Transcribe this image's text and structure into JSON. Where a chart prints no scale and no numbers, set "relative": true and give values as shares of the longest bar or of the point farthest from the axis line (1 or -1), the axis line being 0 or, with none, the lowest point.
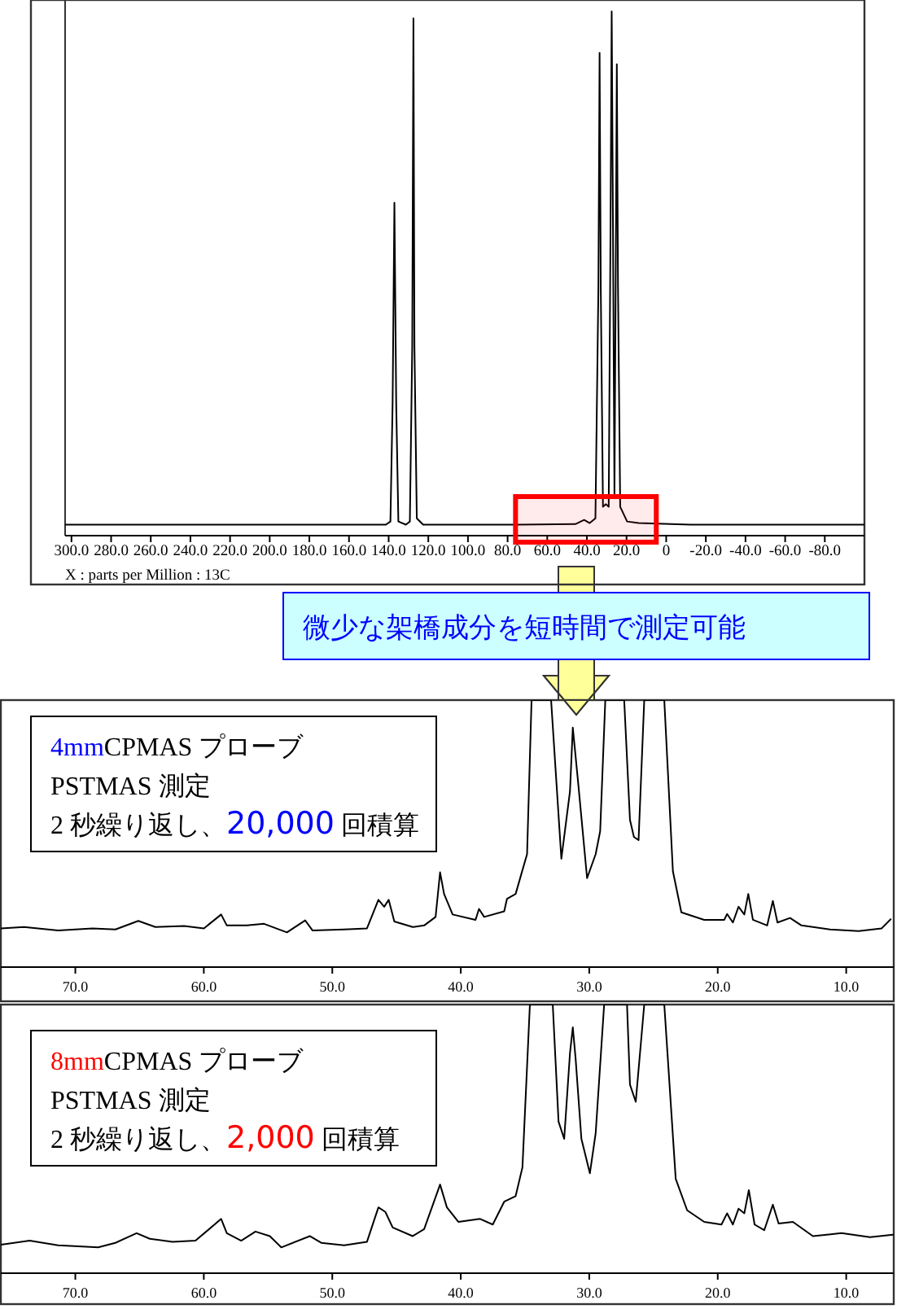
{
  "chart_data": [
    {
      "type": "line",
      "relative": true,
      "xlabel": "X : parts per Million : 13C",
      "xlim": [
        303.2,
        -100
      ],
      "xticks": [
        {
          "value": 300,
          "label": "300.0"
        },
        {
          "value": 280,
          "label": "280.0"
        },
        {
          "value": 260,
          "label": "260.0"
        },
        {
          "value": 240,
          "label": "240.0"
        },
        {
          "value": 220,
          "label": "220.0"
        },
        {
          "value": 200,
          "label": "200.0"
        },
        {
          "value": 180,
          "label": "180.0"
        },
        {
          "value": 160,
          "label": "160.0"
        },
        {
          "value": 140,
          "label": "140.0"
        },
        {
          "value": 120,
          "label": "120.0"
        },
        {
          "value": 100,
          "label": "100.0"
        },
        {
          "value": 80,
          "label": "80.0"
        },
        {
          "value": 60,
          "label": "60.0"
        },
        {
          "value": 40,
          "label": "40.0"
        },
        {
          "value": 20,
          "label": "20.0"
        },
        0,
        {
          "value": -20,
          "label": "-20.0"
        },
        {
          "value": -40,
          "label": "-40.0"
        },
        {
          "value": -60,
          "label": "-60.0"
        },
        {
          "value": -80,
          "label": "-80.0"
        }
      ],
      "x": [
        303.2,
        161.7,
        141.4,
        139.1,
        138.0,
        137.1,
        136.2,
        135.1,
        131.3,
        129.3,
        128.1,
        127.5,
        127.0,
        125.8,
        122.6,
        74.8,
        45.8,
        41.4,
        38.6,
        35.7,
        34.2,
        33.6,
        33.0,
        31.9,
        30.4,
        29.0,
        28.1,
        27.5,
        27.0,
        26.1,
        25.5,
        24.9,
        24.3,
        23.2,
        19.7,
        13.9,
        -12.2,
        -100
      ],
      "series": [
        {
          "color": "#000000",
          "values": [
            0.021,
            0.021,
            0.021,
            0.027,
            0.253,
            0.635,
            0.253,
            0.027,
            0.021,
            0.027,
            0.363,
            0.987,
            0.363,
            0.033,
            0.021,
            0.021,
            0.022,
            0.03,
            0.024,
            0.033,
            0.473,
            0.921,
            0.473,
            0.055,
            0.06,
            0.055,
            0.582,
            1,
            0.692,
            0.077,
            0.473,
            0.899,
            0.473,
            0.055,
            0.027,
            0.024,
            0.021,
            0.021
          ]
        }
      ],
      "bands": [
        {
          "axis": "x",
          "from": 76,
          "to": 5,
          "color": "#ff0000"
        }
      ],
      "annotations": [
        "微少な架橋成分を短時間で測定可能"
      ]
    },
    {
      "type": "line",
      "relative": true,
      "xlim": [
        75.8,
        6.3
      ],
      "xticks": [
        {
          "value": 70,
          "label": "70.0"
        },
        {
          "value": 60,
          "label": "60.0"
        },
        {
          "value": 50,
          "label": "50.0"
        },
        {
          "value": 40,
          "label": "40.0"
        },
        {
          "value": 30,
          "label": "30.0"
        },
        {
          "value": 20,
          "label": "20.0"
        },
        {
          "value": 10,
          "label": "10.0"
        }
      ],
      "x": [
        75.79,
        74.0,
        71.34,
        68.66,
        66.88,
        65.1,
        63.77,
        61.54,
        59.99,
        58.65,
        58.21,
        56.65,
        55.31,
        53.53,
        52.11,
        51.53,
        49.08,
        47.3,
        46.41,
        45.96,
        45.61,
        45.17,
        43.74,
        42.85,
        41.96,
        41.61,
        41.3,
        40.63,
        38.85,
        38.58,
        38.18,
        36.62,
        36.4,
        35.73,
        35.29,
        34.84,
        34.49,
        32.97,
        32.17,
        31.5,
        31.28,
        30.84,
        30.17,
        29.5,
        29.15,
        28.75,
        27.28,
        26.83,
        26.52,
        26.16,
        25.72,
        24.16,
        23.49,
        22.83,
        21.05,
        19.49,
        19.27,
        18.82,
        18.38,
        17.93,
        17.62,
        17.26,
        16.15,
        15.71,
        15.35,
        14.37,
        13.48,
        11.26,
        9.03,
        7.25,
        6.54
      ],
      "series": [
        {
          "color": "#000000",
          "values": [
            0.145,
            0.15,
            0.137,
            0.145,
            0.141,
            0.173,
            0.15,
            0.154,
            0.145,
            0.197,
            0.156,
            0.156,
            0.162,
            0.13,
            0.175,
            0.137,
            0.141,
            0.145,
            0.252,
            0.226,
            0.252,
            0.171,
            0.15,
            0.156,
            0.188,
            0.355,
            0.274,
            0.197,
            0.177,
            0.218,
            0.188,
            0.209,
            0.256,
            0.274,
            0.348,
            0.423,
            1,
            1,
            0.406,
            0.658,
            0.897,
            0.679,
            0.333,
            0.423,
            0.509,
            1,
            1,
            0.551,
            0.487,
            0.476,
            1,
            1,
            0.359,
            0.205,
            0.177,
            0.177,
            0.199,
            0.167,
            0.226,
            0.197,
            0.274,
            0.177,
            0.156,
            0.248,
            0.167,
            0.184,
            0.156,
            0.141,
            0.135,
            0.145,
            0.179
          ]
        }
      ],
      "annotations": [
        "4mmCPMAS プローブ",
        "PSTMAS 測定",
        "2 秒繰り返し、20,000 回積算"
      ]
    },
    {
      "type": "line",
      "relative": true,
      "xlim": [
        75.8,
        6.3
      ],
      "xticks": [
        {
          "value": 70,
          "label": "70.0"
        },
        {
          "value": 60,
          "label": "60.0"
        },
        {
          "value": 50,
          "label": "50.0"
        },
        {
          "value": 40,
          "label": "40.0"
        },
        {
          "value": 30,
          "label": "30.0"
        },
        {
          "value": 20,
          "label": "20.0"
        },
        {
          "value": 10,
          "label": "10.0"
        }
      ],
      "x": [
        75.79,
        73.56,
        71.34,
        68.22,
        66.88,
        65.23,
        64.2,
        62.43,
        60.65,
        58.65,
        58.21,
        57.09,
        55.98,
        54.86,
        53.97,
        51.75,
        50.86,
        49.08,
        47.3,
        46.41,
        45.87,
        45.3,
        43.74,
        42.85,
        41.61,
        41.08,
        40.19,
        38.49,
        37.51,
        36.62,
        35.73,
        35.2,
        34.62,
        32.84,
        32.39,
        31.95,
        31.5,
        31.28,
        31.06,
        30.61,
        29.95,
        29.5,
        28.84,
        27.06,
        26.83,
        26.38,
        25.72,
        24.16,
        23.27,
        22.38,
        21.05,
        19.71,
        19.27,
        18.82,
        18.38,
        17.93,
        17.58,
        17.13,
        16.38,
        15.71,
        15.26,
        14.15,
        12.59,
        10.37,
        8.15,
        6.37
      ],
      "series": [
        {
          "color": "#000000",
          "values": [
            0.106,
            0.121,
            0.104,
            0.096,
            0.113,
            0.149,
            0.128,
            0.117,
            0.121,
            0.202,
            0.149,
            0.121,
            0.155,
            0.138,
            0.096,
            0.138,
            0.113,
            0.104,
            0.117,
            0.245,
            0.228,
            0.17,
            0.138,
            0.164,
            0.33,
            0.245,
            0.191,
            0.202,
            0.181,
            0.266,
            0.287,
            0.394,
            1,
            1,
            0.564,
            0.5,
            0.819,
            0.915,
            0.798,
            0.5,
            0.372,
            0.521,
            1,
            1,
            0.702,
            0.638,
            1,
            1,
            0.351,
            0.234,
            0.191,
            0.181,
            0.223,
            0.181,
            0.24,
            0.223,
            0.309,
            0.181,
            0.16,
            0.255,
            0.185,
            0.191,
            0.138,
            0.149,
            0.134,
            0.143
          ]
        }
      ],
      "annotations": [
        "8mmCPMAS プローブ",
        "PSTMAS 測定",
        "2 秒繰り返し、2,000 回積算"
      ]
    }
  ]
}
